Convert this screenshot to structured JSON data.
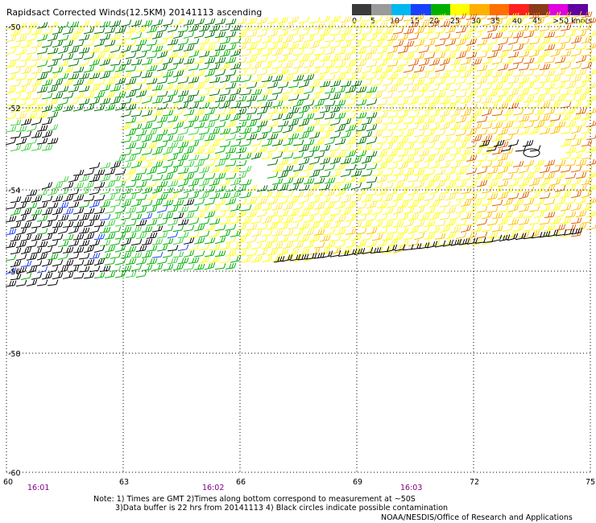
{
  "title": "Rapidsact Corrected Winds(12.5KM) 20141113 ascending",
  "legend": {
    "labels": [
      "0",
      "5",
      "10",
      "15",
      "20",
      "25",
      "30",
      "35",
      "40",
      "45",
      ">50 knots"
    ],
    "colors": [
      "#3a3a3a",
      "#9a9a9a",
      "#00b8f0",
      "#1a40ff",
      "#00b000",
      "#ffff00",
      "#ffb000",
      "#ff7000",
      "#ff2020",
      "#8b3a1a",
      "#e000e0",
      "#6000a0"
    ]
  },
  "chart_data": {
    "type": "wind-barb-map",
    "lat_labels": [
      "-50",
      "-52",
      "-54",
      "-56",
      "-58",
      "-60"
    ],
    "lon_labels": [
      "60",
      "63",
      "66",
      "69",
      "72",
      "75"
    ],
    "time_labels": [
      "16:01",
      "16:02",
      "16:03"
    ]
  },
  "notes": [
    "Note: 1) Times are GMT 2)Times along bottom correspond to measurement at ~50S",
    "3)Data buffer is 22 hrs from 20141113 4) Black circles indicate possible contamination"
  ],
  "credit": "NOAA/NESDIS/Office of Research and Applications"
}
